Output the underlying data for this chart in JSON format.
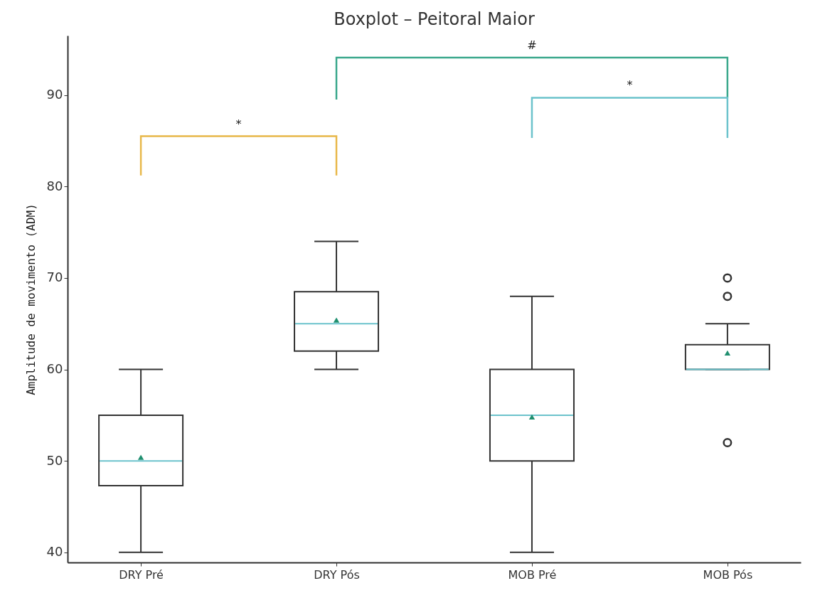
{
  "chart_data": {
    "type": "box",
    "title": "Boxplot – Peitoral Maior",
    "ylabel": "Amplitude de movimento (ADM)",
    "categories": [
      "DRY Pré",
      "DRY Pós",
      "MOB Pré",
      "MOB Pós"
    ],
    "boxes": [
      {
        "low": 40,
        "q1": 47.3,
        "median": 50,
        "q3": 55,
        "high": 60,
        "mean": 50.4
      },
      {
        "low": 60,
        "q1": 62,
        "median": 65,
        "q3": 68.5,
        "high": 74,
        "mean": 65.4
      },
      {
        "low": 40,
        "q1": 50,
        "median": 55,
        "q3": 60,
        "high": 68,
        "mean": 54.8
      },
      {
        "low": 60,
        "q1": 60,
        "median": 60,
        "q3": 62.7,
        "high": 65,
        "mean": 61.8,
        "outliers": [
          52,
          68,
          70
        ]
      }
    ],
    "ylim": [
      38.9,
      96.5
    ],
    "yticks": [
      40,
      50,
      60,
      70,
      80,
      90
    ],
    "annotations": [
      "*",
      "#",
      "*"
    ]
  }
}
